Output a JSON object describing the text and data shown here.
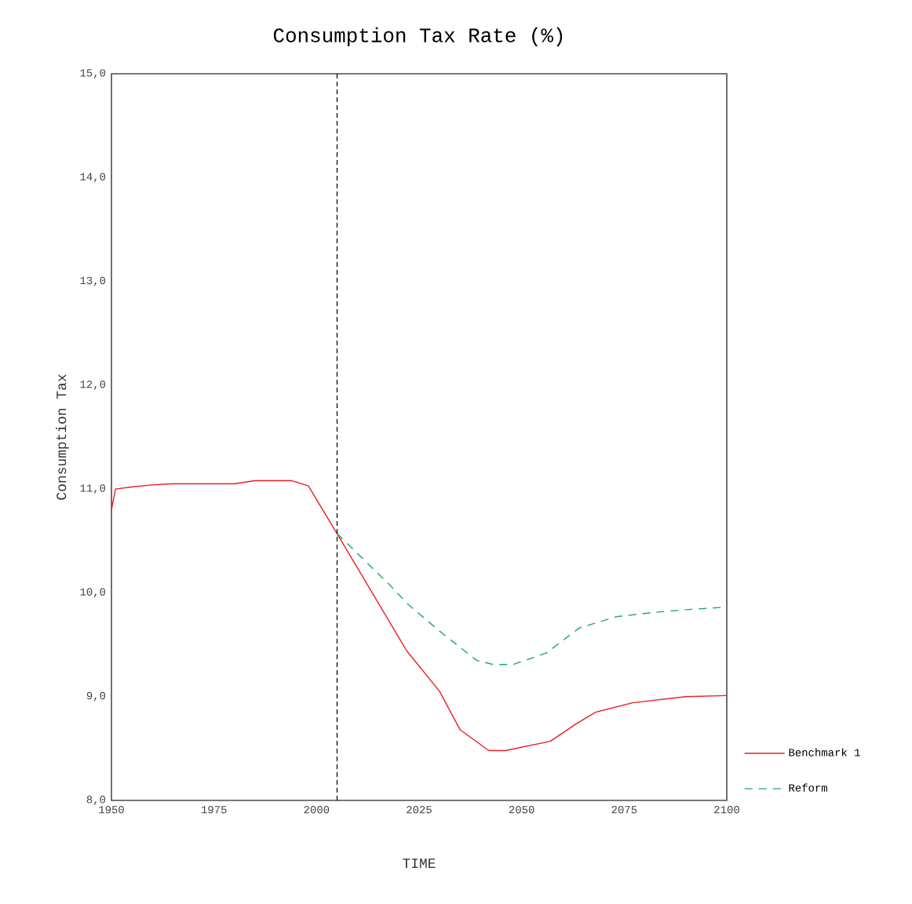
{
  "chart_data": {
    "type": "line",
    "title": "Consumption Tax Rate (%)",
    "xlabel": "TIME",
    "ylabel": "Consumption Tax",
    "xlim": [
      1950,
      2100
    ],
    "ylim": [
      8,
      15
    ],
    "xticks": [
      1950,
      1975,
      2000,
      2025,
      2050,
      2075,
      2100
    ],
    "yticks": [
      {
        "value": 8,
        "label": "8,0"
      },
      {
        "value": 9,
        "label": "9,0"
      },
      {
        "value": 10,
        "label": "10,0"
      },
      {
        "value": 11,
        "label": "11,0"
      },
      {
        "value": 12,
        "label": "12,0"
      },
      {
        "value": 13,
        "label": "13,0"
      },
      {
        "value": 14,
        "label": "14,0"
      },
      {
        "value": 15,
        "label": "15,0"
      }
    ],
    "grid": false,
    "legend": "bottom right",
    "marker": "none",
    "ref_lines": [
      {
        "axis": "x",
        "value": 2005,
        "color": "#000000",
        "line_style": "dashed"
      }
    ],
    "series": [
      {
        "name": "Benchmark 1",
        "color": "#ee1c25",
        "line_style": "solid",
        "x": [
          1950,
          1951,
          1955,
          1960,
          1965,
          1980,
          1985,
          1990,
          1994,
          1998,
          2005,
          2022,
          2030,
          2035,
          2042,
          2046,
          2057,
          2063,
          2068,
          2077,
          2090,
          2100
        ],
        "values": [
          10.8,
          11.0,
          11.02,
          11.04,
          11.05,
          11.05,
          11.08,
          11.08,
          11.08,
          11.03,
          10.57,
          9.44,
          9.05,
          8.68,
          8.48,
          8.48,
          8.57,
          8.73,
          8.85,
          8.94,
          9.0,
          9.01
        ]
      },
      {
        "name": "Reform",
        "color": "#1aa860",
        "line_style": "dashed",
        "x": [
          2005,
          2018,
          2022,
          2030,
          2039,
          2043,
          2048,
          2056,
          2064,
          2073,
          2082,
          2091,
          2099
        ],
        "values": [
          10.57,
          10.07,
          9.9,
          9.63,
          9.35,
          9.31,
          9.31,
          9.42,
          9.66,
          9.77,
          9.81,
          9.84,
          9.86
        ]
      }
    ]
  }
}
